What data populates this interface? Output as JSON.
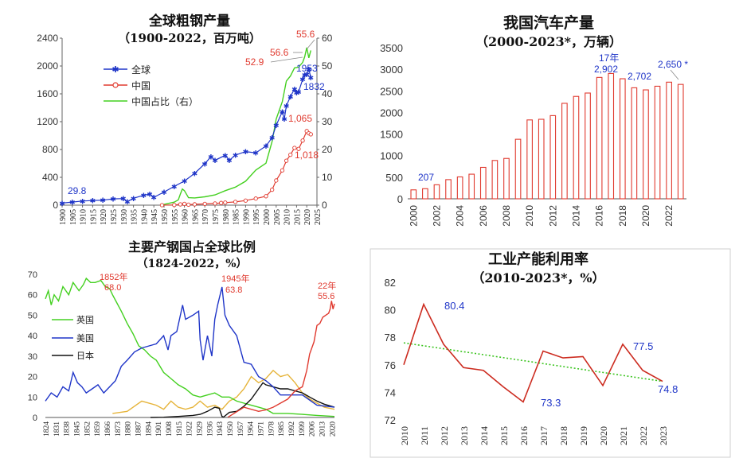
{
  "chart_data": [
    {
      "type": "line",
      "title": "全球粗钢产量",
      "subtitle": "（1900-2022，百万吨）",
      "xlabel": "",
      "ylabel": "",
      "x_ticks": [
        "1900",
        "1905",
        "1910",
        "1915",
        "1920",
        "1925",
        "1930",
        "1935",
        "1940",
        "1945",
        "1950",
        "1955",
        "1960",
        "1965",
        "1970",
        "1975",
        "1980",
        "1985",
        "1990",
        "1995",
        "2000",
        "2005",
        "2010",
        "2015",
        "2020",
        "2025"
      ],
      "y_ticks": [
        "0",
        "400",
        "800",
        "1200",
        "1600",
        "2000",
        "2400"
      ],
      "y2_ticks": [
        "0",
        "10",
        "20",
        "30",
        "40",
        "50",
        "60"
      ],
      "xlim": [
        1900,
        2025
      ],
      "ylim": [
        0,
        2400
      ],
      "y2lim": [
        0,
        60
      ],
      "legend": [
        "全球",
        "中国",
        "中国占比（右）"
      ],
      "legend_position": "top-left",
      "annotations": [
        "29.8",
        "55.6",
        "56.6",
        "52.9",
        "1953",
        "1832",
        "1,065",
        "1,018"
      ],
      "series": [
        {
          "name": "全球",
          "color": "#1f35c8",
          "x": [
            1900,
            1905,
            1910,
            1915,
            1920,
            1925,
            1930,
            1932,
            1935,
            1940,
            1943,
            1945,
            1950,
            1955,
            1960,
            1965,
            1970,
            1973,
            1975,
            1980,
            1982,
            1985,
            1990,
            1995,
            2000,
            2003,
            2005,
            2008,
            2009,
            2010,
            2012,
            2014,
            2015,
            2016,
            2018,
            2019,
            2020,
            2021,
            2022
          ],
          "values": [
            29.8,
            45,
            60,
            66,
            72,
            90,
            95,
            50,
            100,
            142,
            160,
            113,
            189,
            270,
            347,
            456,
            595,
            697,
            645,
            716,
            645,
            719,
            770,
            752,
            850,
            970,
            1148,
            1343,
            1238,
            1430,
            1560,
            1670,
            1620,
            1630,
            1810,
            1875,
            1880,
            1953,
            1832
          ]
        },
        {
          "name": "中国",
          "color": "#e03a2f",
          "x": [
            1949,
            1955,
            1958,
            1960,
            1962,
            1965,
            1970,
            1975,
            1978,
            1980,
            1985,
            1990,
            1995,
            2000,
            2003,
            2005,
            2008,
            2010,
            2012,
            2014,
            2016,
            2018,
            2020,
            2021,
            2022
          ],
          "values": [
            0.2,
            3,
            11,
            18,
            7,
            12,
            18,
            24,
            32,
            37,
            47,
            66,
            95,
            128,
            222,
            355,
            500,
            638,
            724,
            823,
            808,
            928,
            1065,
            1033,
            1018
          ]
        },
        {
          "name": "中国占比（右）",
          "color": "#44d020",
          "x": [
            1949,
            1955,
            1957,
            1958,
            1959,
            1960,
            1962,
            1965,
            1970,
            1975,
            1980,
            1985,
            1990,
            1995,
            2000,
            2003,
            2005,
            2008,
            2010,
            2012,
            2014,
            2016,
            2018,
            2019,
            2020,
            2021,
            2022
          ],
          "values": [
            0.1,
            1.1,
            1.9,
            4.0,
            5.8,
            5.2,
            2.7,
            2.6,
            3.0,
            3.7,
            5.2,
            6.5,
            8.6,
            12.6,
            15.1,
            22.9,
            30.9,
            37.2,
            44.6,
            46.4,
            49.3,
            49.6,
            51.3,
            53.3,
            56.6,
            52.9,
            55.6
          ]
        }
      ]
    },
    {
      "type": "bar",
      "title": "我国汽车产量",
      "subtitle": "（2000-2023*，万辆）",
      "categories": [
        "2000",
        "2001",
        "2002",
        "2003",
        "2004",
        "2005",
        "2006",
        "2007",
        "2008",
        "2009",
        "2010",
        "2011",
        "2012",
        "2013",
        "2014",
        "2015",
        "2016",
        "2017",
        "2018",
        "2019",
        "2020",
        "2021",
        "2022",
        "2023"
      ],
      "x_tick_labels": [
        "2000",
        "2002",
        "2004",
        "2006",
        "2008",
        "2010",
        "2012",
        "2014",
        "2016",
        "2018",
        "2020",
        "2022"
      ],
      "values": [
        207,
        234,
        325,
        444,
        507,
        570,
        728,
        888,
        935,
        1379,
        1827,
        1842,
        1927,
        2212,
        2372,
        2450,
        2812,
        2902,
        2781,
        2572,
        2523,
        2608,
        2702,
        2650
      ],
      "y_ticks": [
        "0",
        "500",
        "1000",
        "1500",
        "2000",
        "2500",
        "3000",
        "3500"
      ],
      "ylim": [
        0,
        3500
      ],
      "xlabel": "",
      "ylabel": "",
      "annotations": [
        "207",
        "17年",
        "2,902",
        "2,702",
        "2,650 *"
      ],
      "bar_color": "#e03a2f"
    },
    {
      "type": "line",
      "title": "主要产钢国占全球比例",
      "subtitle": "（1824-2022，%）",
      "x_ticks": [
        "1824",
        "1831",
        "1838",
        "1845",
        "1852",
        "1859",
        "1866",
        "1873",
        "1880",
        "1887",
        "1894",
        "1901",
        "1908",
        "1915",
        "1922",
        "1929",
        "1936",
        "1943",
        "1950",
        "1957",
        "1964",
        "1971",
        "1978",
        "1985",
        "1992",
        "1999",
        "2006",
        "2013",
        "2020"
      ],
      "y_ticks": [
        "0",
        "10",
        "20",
        "30",
        "40",
        "50",
        "60",
        "70"
      ],
      "xlim": [
        1824,
        2022
      ],
      "ylim": [
        0,
        70
      ],
      "legend": [
        "英国",
        "美国",
        "日本"
      ],
      "legend_position": "middle-left",
      "annotations": [
        "1852年",
        "68.0",
        "1945年",
        "63.8",
        "22年",
        "55.6"
      ],
      "series": [
        {
          "name": "英国",
          "color": "#44d020",
          "x": [
            1824,
            1826,
            1828,
            1830,
            1833,
            1836,
            1840,
            1843,
            1847,
            1850,
            1852,
            1855,
            1858,
            1862,
            1865,
            1868,
            1870,
            1873,
            1876,
            1880,
            1884,
            1888,
            1892,
            1896,
            1900,
            1905,
            1910,
            1915,
            1920,
            1925,
            1930,
            1935,
            1940,
            1945,
            1950,
            1955,
            1960,
            1965,
            1970,
            1975,
            1980,
            1990,
            2000,
            2010,
            2022
          ],
          "values": [
            58,
            62,
            55,
            60,
            57,
            64,
            60,
            66,
            62,
            65,
            68,
            66,
            66,
            67,
            64,
            63,
            60,
            56,
            52,
            46,
            41,
            35,
            33,
            30,
            28,
            22,
            19,
            16,
            14,
            11,
            10,
            11,
            12,
            10,
            10,
            8,
            7,
            6,
            5,
            4,
            2,
            2,
            1.5,
            1,
            0.5
          ]
        },
        {
          "name": "美国",
          "color": "#1f35c8",
          "x": [
            1824,
            1828,
            1832,
            1836,
            1840,
            1843,
            1846,
            1849,
            1852,
            1856,
            1860,
            1864,
            1868,
            1872,
            1876,
            1880,
            1885,
            1890,
            1895,
            1900,
            1905,
            1908,
            1910,
            1914,
            1918,
            1920,
            1925,
            1929,
            1930,
            1932,
            1935,
            1938,
            1940,
            1942,
            1945,
            1947,
            1950,
            1955,
            1960,
            1965,
            1970,
            1975,
            1980,
            1985,
            1990,
            2000,
            2010,
            2022
          ],
          "values": [
            8,
            12,
            10,
            15,
            13,
            22,
            17,
            15,
            12,
            14,
            16,
            12,
            15,
            18,
            25,
            28,
            32,
            34,
            35,
            36,
            40,
            33,
            40,
            42,
            55,
            48,
            50,
            52,
            38,
            28,
            40,
            30,
            48,
            55,
            63.8,
            50,
            45,
            40,
            27,
            26,
            20,
            18,
            15,
            11,
            11,
            11,
            6,
            5
          ]
        },
        {
          "name": "日本",
          "color": "#111111",
          "x": [
            1896,
            1905,
            1915,
            1925,
            1930,
            1935,
            1940,
            1943,
            1945,
            1946,
            1950,
            1955,
            1960,
            1965,
            1970,
            1973,
            1975,
            1980,
            1985,
            1990,
            1995,
            2000,
            2005,
            2010,
            2015,
            2022
          ],
          "values": [
            0,
            0.1,
            0.5,
            1,
            1.5,
            3,
            5,
            4.5,
            0.5,
            0.2,
            2.5,
            3,
            5.5,
            9,
            14,
            17,
            16,
            15,
            14,
            14,
            13,
            12,
            10,
            8,
            6.5,
            5
          ]
        },
        {
          "name": "",
          "color": "#e6b43a",
          "x": [
            1870,
            1880,
            1890,
            1900,
            1905,
            1910,
            1915,
            1920,
            1925,
            1930,
            1935,
            1940,
            1945,
            1950,
            1955,
            1960,
            1965,
            1970,
            1975,
            1980,
            1985,
            1990,
            1995,
            2000,
            2005,
            2010,
            2015,
            2022
          ],
          "values": [
            2,
            3,
            8,
            6,
            4,
            8,
            5,
            4,
            5,
            8,
            5,
            6,
            4,
            8,
            10,
            14,
            20,
            17,
            19,
            23,
            20,
            21,
            17,
            12,
            9,
            7,
            5,
            4
          ]
        },
        {
          "name": "",
          "color": "#e03a2f",
          "x": [
            1949,
            1960,
            1970,
            1975,
            1980,
            1985,
            1990,
            1995,
            2000,
            2003,
            2005,
            2008,
            2010,
            2012,
            2014,
            2016,
            2018,
            2019,
            2020,
            2021,
            2022
          ],
          "values": [
            0.1,
            5,
            3,
            3.7,
            5,
            7,
            9,
            13,
            15,
            23,
            31,
            37,
            45,
            46,
            49,
            50,
            51,
            53,
            57,
            53,
            55.6
          ]
        }
      ]
    },
    {
      "type": "line",
      "title": "工业产能利用率",
      "subtitle": "（2010-2023*，%）",
      "x": [
        2010,
        2011,
        2012,
        2013,
        2014,
        2015,
        2016,
        2017,
        2018,
        2019,
        2020,
        2021,
        2022,
        2023
      ],
      "categories": [
        "2010",
        "2011",
        "2012",
        "2013",
        "2014",
        "2015",
        "2016",
        "2017",
        "2018",
        "2019",
        "2020",
        "2021",
        "2022",
        "2023"
      ],
      "values": [
        76.0,
        80.4,
        77.5,
        75.8,
        75.6,
        74.4,
        73.3,
        77.0,
        76.5,
        76.6,
        74.5,
        77.5,
        75.6,
        74.8
      ],
      "y_ticks": [
        "72",
        "74",
        "76",
        "78",
        "80",
        "82"
      ],
      "ylim": [
        72,
        82
      ],
      "trend": [
        77.6,
        74.8
      ],
      "annotations": [
        "80.4",
        "73.3",
        "77.5",
        "74.8"
      ],
      "line_color": "#cc2b1f",
      "trend_color": "#3bc41f"
    }
  ]
}
